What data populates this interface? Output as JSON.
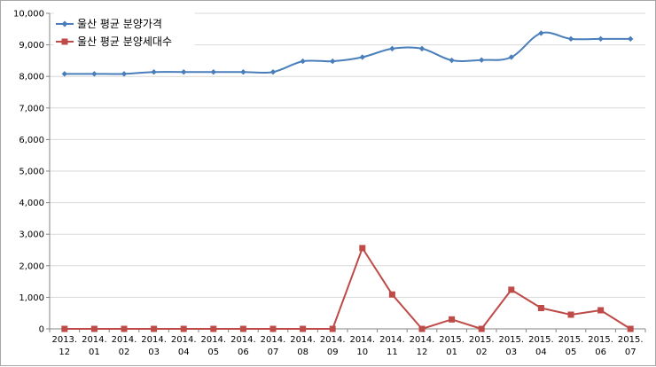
{
  "chart_data": {
    "type": "line",
    "categories": [
      [
        "2013.",
        "12"
      ],
      [
        "2014.",
        "01"
      ],
      [
        "2014.",
        "02"
      ],
      [
        "2014.",
        "03"
      ],
      [
        "2014.",
        "04"
      ],
      [
        "2014.",
        "05"
      ],
      [
        "2014.",
        "06"
      ],
      [
        "2014.",
        "07"
      ],
      [
        "2014.",
        "08"
      ],
      [
        "2014.",
        "09"
      ],
      [
        "2014.",
        "10"
      ],
      [
        "2014.",
        "11"
      ],
      [
        "2014.",
        "12"
      ],
      [
        "2015.",
        "01"
      ],
      [
        "2015.",
        "02"
      ],
      [
        "2015.",
        "03"
      ],
      [
        "2015.",
        "04"
      ],
      [
        "2015.",
        "05"
      ],
      [
        "2015.",
        "06"
      ],
      [
        "2015.",
        "07"
      ]
    ],
    "ylim": [
      0,
      10000
    ],
    "yticks": [
      "0",
      "1,000",
      "2,000",
      "3,000",
      "4,000",
      "5,000",
      "6,000",
      "7,000",
      "8,000",
      "9,000",
      "10,000"
    ],
    "ytick_values": [
      0,
      1000,
      2000,
      3000,
      4000,
      5000,
      6000,
      7000,
      8000,
      9000,
      10000
    ],
    "grid": true,
    "legend_position": "top-left",
    "series": [
      {
        "name": "울산 평균 분양가격",
        "color": "#4a7ebb",
        "marker": "diamond",
        "smooth": true,
        "values": [
          8080,
          8080,
          8080,
          8140,
          8140,
          8140,
          8140,
          8140,
          8480,
          8480,
          8610,
          8880,
          8880,
          8510,
          8520,
          8610,
          9370,
          9190,
          9190,
          9190
        ]
      },
      {
        "name": "울산 평균 분양세대수",
        "color": "#be4b48",
        "marker": "square",
        "smooth": false,
        "values": [
          0,
          0,
          0,
          0,
          0,
          0,
          0,
          0,
          0,
          0,
          2560,
          1090,
          0,
          300,
          0,
          1240,
          660,
          450,
          590,
          0
        ]
      }
    ]
  }
}
